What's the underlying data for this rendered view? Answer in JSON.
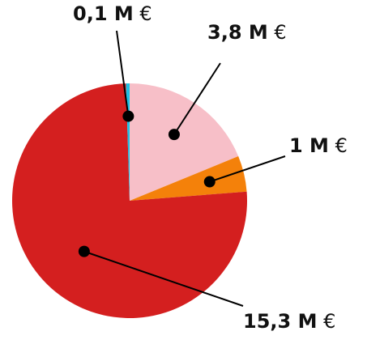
{
  "chart_data": {
    "type": "pie",
    "title": "",
    "unit": "€",
    "slices": [
      {
        "value_label": "3,8 M",
        "value": 3.8,
        "color": "#f7bfc8"
      },
      {
        "value_label": "1 M",
        "value": 1.0,
        "color": "#f4810a"
      },
      {
        "value_label": "15,3 M",
        "value": 15.3,
        "color": "#d41f1f"
      },
      {
        "value_label": "0,1 M",
        "value": 0.1,
        "color": "#1fbfe3"
      }
    ],
    "start_angle_deg": 0,
    "direction": "clockwise"
  }
}
